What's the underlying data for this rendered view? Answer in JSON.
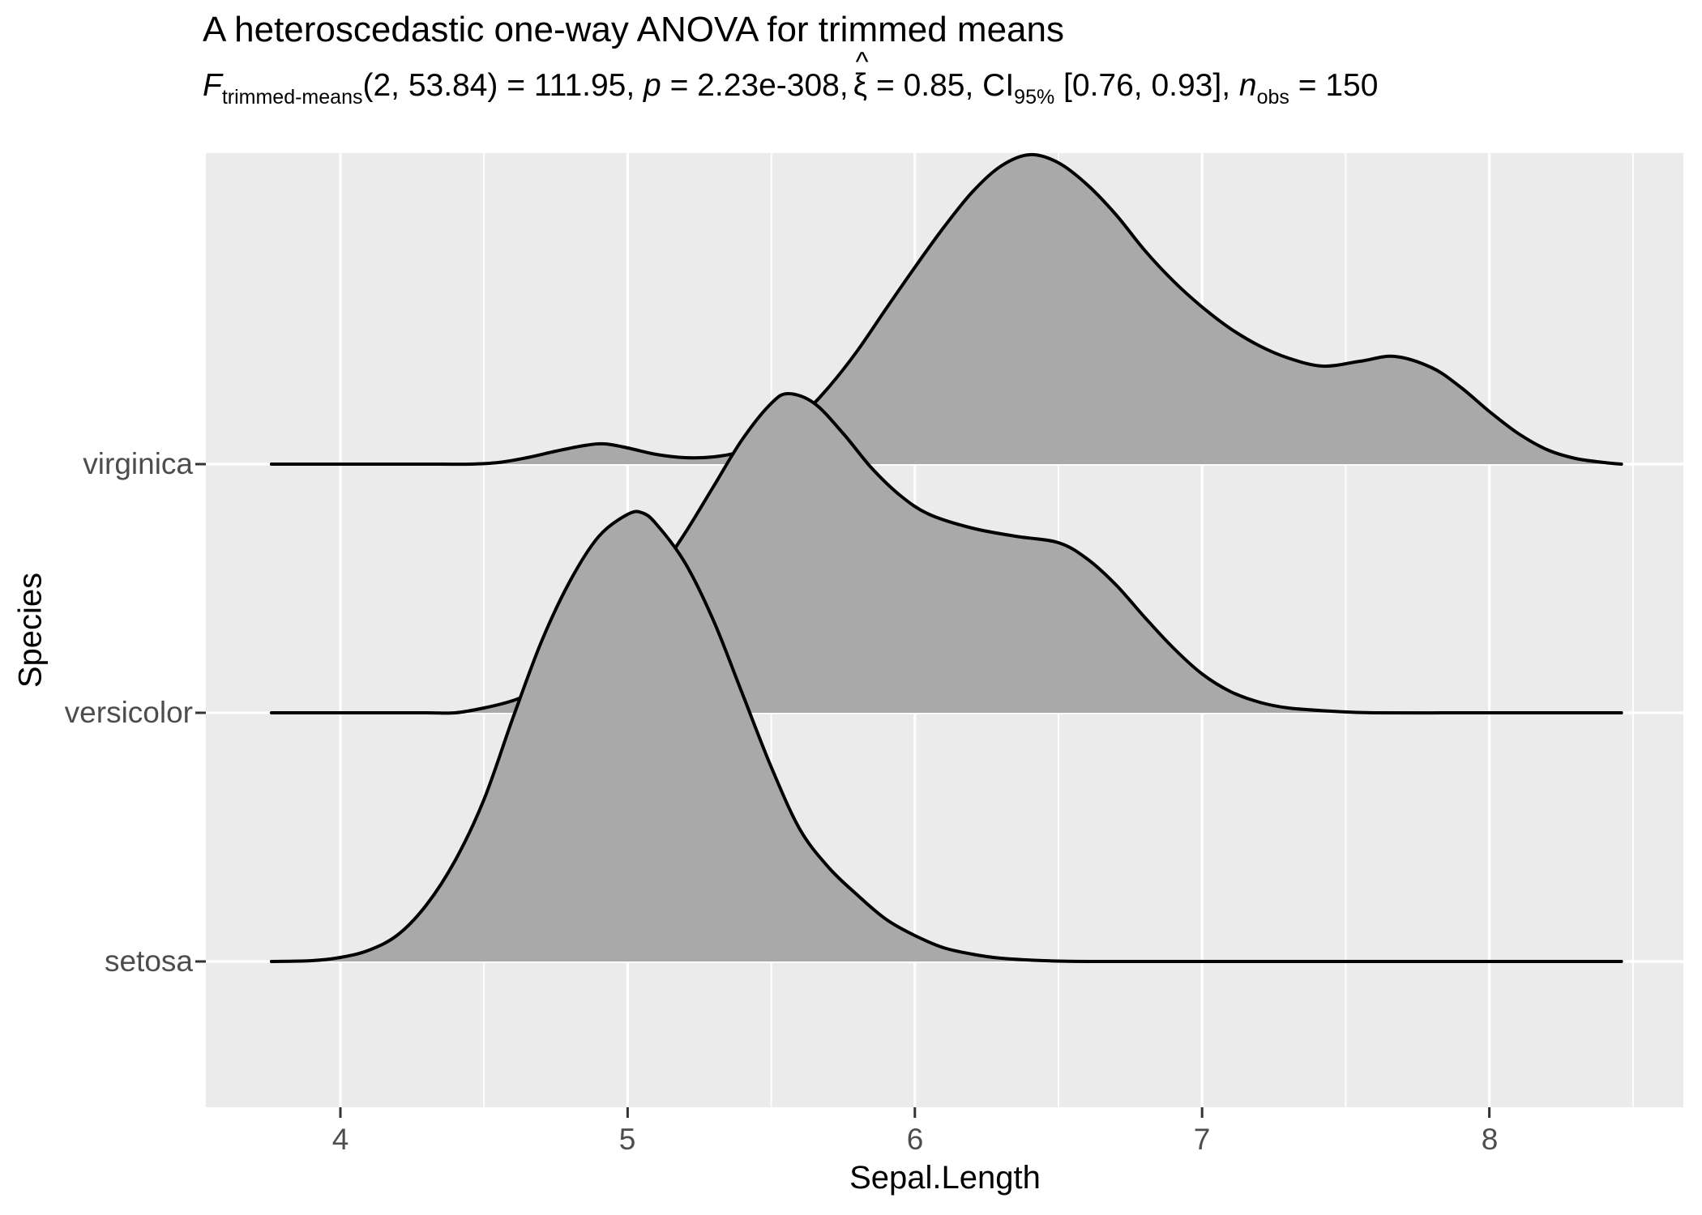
{
  "title": "A heteroscedastic one-way ANOVA for trimmed means",
  "subtitle": {
    "f_symbol": "F",
    "f_subscript": "trimmed-means",
    "df_and_stat": "(2, 53.84) = 111.95, ",
    "p_symbol": "p",
    "p_value": " = 2.23e-308,",
    "xi_symbol": "ξ",
    "xi_hat": "^",
    "xi_value": " = 0.85, CI",
    "ci_subscript": "95%",
    "ci_interval": " [0.76, 0.93], ",
    "n_symbol": "n",
    "n_subscript": "obs",
    "n_value": " = 150"
  },
  "axes": {
    "x": {
      "title": "Sepal.Length",
      "ticks": [
        "4",
        "5",
        "6",
        "7",
        "8"
      ],
      "tick_values": [
        4,
        5,
        6,
        7,
        8
      ],
      "minor_tick_values": [
        4.5,
        5.5,
        6.5,
        7.5,
        8.5
      ],
      "shown_range": [
        3.53,
        8.68
      ]
    },
    "y": {
      "title": "Species",
      "ticks": [
        "virginica",
        "versicolor",
        "setosa"
      ]
    }
  },
  "colors": {
    "background": "#FFFFFF",
    "panel_bg": "#EBEBEB",
    "grid_major": "#FFFFFF",
    "grid_minor": "#FFFFFF",
    "ridge_fill": "#A9A9A9",
    "ridge_stroke": "#000000",
    "axis_text": "#4D4D4D",
    "tick_mark": "#333333",
    "title_text": "#000000"
  },
  "chart_data": {
    "type": "area",
    "variant": "ridgeline-density",
    "title": "A heteroscedastic one-way ANOVA for trimmed means",
    "xlabel": "Sepal.Length",
    "ylabel": "Species",
    "x_axis_ticks": [
      4,
      5,
      6,
      7,
      8
    ],
    "categories_bottom_to_top": [
      "setosa",
      "versicolor",
      "virginica"
    ],
    "n_obs": 150,
    "stats": {
      "F_trimmed_means_df1": 2,
      "F_trimmed_means_df2": 53.84,
      "F_value": 111.95,
      "p_value": "2.23e-308",
      "xi_hat": 0.85,
      "ci_level": "95%",
      "ci": [
        0.76,
        0.93
      ]
    },
    "series": [
      {
        "name": "virginica",
        "row": 2,
        "peak_x": 6.4,
        "points": [
          [
            3.76,
            0
          ],
          [
            4.0,
            0
          ],
          [
            4.2,
            0
          ],
          [
            4.35,
            0
          ],
          [
            4.45,
            0
          ],
          [
            4.55,
            2
          ],
          [
            4.65,
            8
          ],
          [
            4.75,
            16
          ],
          [
            4.85,
            23
          ],
          [
            4.92,
            25
          ],
          [
            5.0,
            20
          ],
          [
            5.1,
            12
          ],
          [
            5.2,
            8
          ],
          [
            5.3,
            9
          ],
          [
            5.4,
            16
          ],
          [
            5.5,
            32
          ],
          [
            5.6,
            58
          ],
          [
            5.7,
            95
          ],
          [
            5.8,
            140
          ],
          [
            5.9,
            192
          ],
          [
            6.0,
            243
          ],
          [
            6.1,
            292
          ],
          [
            6.2,
            336
          ],
          [
            6.3,
            368
          ],
          [
            6.4,
            382
          ],
          [
            6.5,
            372
          ],
          [
            6.6,
            345
          ],
          [
            6.7,
            308
          ],
          [
            6.8,
            264
          ],
          [
            6.9,
            226
          ],
          [
            7.0,
            194
          ],
          [
            7.1,
            167
          ],
          [
            7.2,
            146
          ],
          [
            7.3,
            131
          ],
          [
            7.42,
            121
          ],
          [
            7.55,
            127
          ],
          [
            7.67,
            133
          ],
          [
            7.8,
            119
          ],
          [
            7.9,
            95
          ],
          [
            8.0,
            65
          ],
          [
            8.1,
            38
          ],
          [
            8.2,
            18
          ],
          [
            8.3,
            7
          ],
          [
            8.4,
            2
          ],
          [
            8.46,
            0
          ]
        ]
      },
      {
        "name": "versicolor",
        "row": 1,
        "peak_x": 5.55,
        "points": [
          [
            3.76,
            0
          ],
          [
            4.1,
            0
          ],
          [
            4.3,
            0
          ],
          [
            4.4,
            0
          ],
          [
            4.5,
            6
          ],
          [
            4.6,
            15
          ],
          [
            4.7,
            30
          ],
          [
            4.8,
            52
          ],
          [
            4.9,
            85
          ],
          [
            5.0,
            125
          ],
          [
            5.1,
            170
          ],
          [
            5.2,
            222
          ],
          [
            5.3,
            280
          ],
          [
            5.4,
            338
          ],
          [
            5.5,
            382
          ],
          [
            5.56,
            394
          ],
          [
            5.65,
            382
          ],
          [
            5.75,
            345
          ],
          [
            5.85,
            302
          ],
          [
            5.95,
            268
          ],
          [
            6.05,
            245
          ],
          [
            6.2,
            228
          ],
          [
            6.35,
            218
          ],
          [
            6.5,
            210
          ],
          [
            6.6,
            190
          ],
          [
            6.7,
            158
          ],
          [
            6.8,
            118
          ],
          [
            6.9,
            80
          ],
          [
            7.0,
            48
          ],
          [
            7.1,
            26
          ],
          [
            7.2,
            13
          ],
          [
            7.3,
            6
          ],
          [
            7.45,
            2
          ],
          [
            7.6,
            0
          ],
          [
            7.9,
            0
          ],
          [
            8.2,
            0
          ],
          [
            8.46,
            0
          ]
        ]
      },
      {
        "name": "setosa",
        "row": 0,
        "peak_x": 5.0,
        "points": [
          [
            3.76,
            0
          ],
          [
            3.9,
            1
          ],
          [
            4.0,
            5
          ],
          [
            4.1,
            14
          ],
          [
            4.2,
            33
          ],
          [
            4.3,
            70
          ],
          [
            4.4,
            125
          ],
          [
            4.5,
            200
          ],
          [
            4.6,
            300
          ],
          [
            4.7,
            395
          ],
          [
            4.8,
            470
          ],
          [
            4.9,
            525
          ],
          [
            5.0,
            552
          ],
          [
            5.05,
            554
          ],
          [
            5.1,
            540
          ],
          [
            5.2,
            492
          ],
          [
            5.3,
            420
          ],
          [
            5.4,
            330
          ],
          [
            5.5,
            240
          ],
          [
            5.6,
            163
          ],
          [
            5.7,
            116
          ],
          [
            5.8,
            82
          ],
          [
            5.9,
            52
          ],
          [
            6.0,
            32
          ],
          [
            6.1,
            17
          ],
          [
            6.2,
            9
          ],
          [
            6.3,
            4
          ],
          [
            6.45,
            1
          ],
          [
            6.6,
            0
          ],
          [
            6.9,
            0
          ],
          [
            7.3,
            0
          ],
          [
            7.9,
            0
          ],
          [
            8.46,
            0
          ]
        ]
      }
    ]
  }
}
